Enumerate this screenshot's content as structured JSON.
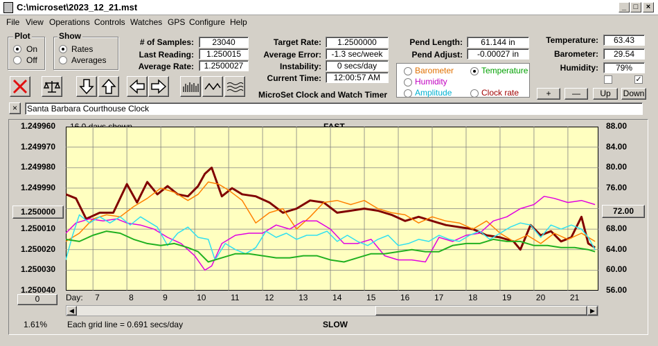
{
  "window": {
    "title": "C:\\microset\\2023_12_21.mst",
    "minimize": "_",
    "maximize": "□",
    "close": "×"
  },
  "menu": [
    "File",
    "View",
    "Operations",
    "Controls",
    "Watches",
    "GPS",
    "Configure",
    "Help"
  ],
  "plot_group": {
    "title": "Plot",
    "options": [
      "On",
      "Off"
    ],
    "selected": "On"
  },
  "show_group": {
    "title": "Show",
    "options": [
      "Rates",
      "Averages"
    ],
    "selected": "Rates"
  },
  "stats": {
    "samples_label": "# of Samples:",
    "samples": "23040",
    "last_label": "Last Reading:",
    "last": "1.250015",
    "avg_label": "Average Rate:",
    "avg": "1.2500027"
  },
  "rates": {
    "target_label": "Target Rate:",
    "target": "1.2500000",
    "error_label": "Average Error:",
    "error": "-1.3 sec/week",
    "instab_label": "Instability:",
    "instab": "0 secs/day",
    "time_label": "Current Time:",
    "time": "12:00:57 AM"
  },
  "app_name": "MicroSet Clock and Watch Timer",
  "pendulum": {
    "length_label": "Pend Length:",
    "length": "61.144 in",
    "adjust_label": "Pend Adjust:",
    "adjust": "-0.00027 in"
  },
  "sensor_select": {
    "options": [
      {
        "label": "Barometer",
        "color": "#e07000"
      },
      {
        "label": "Temperature",
        "color": "#00a000"
      },
      {
        "label": "Humidity",
        "color": "#c000c0"
      },
      {
        "label": "Clock rate",
        "color": "#a00000"
      },
      {
        "label": "Amplitude",
        "color": "#00c0e0"
      }
    ],
    "selected": "Temperature"
  },
  "env": {
    "temp_label": "Temperature:",
    "temp": "63.43",
    "baro_label": "Barometer:",
    "baro": "29.54",
    "hum_label": "Humidity:",
    "hum": "79%",
    "buttons": [
      "+",
      "—",
      "Up",
      "Down"
    ]
  },
  "clock_name": "Santa Barbara Courthouse Clock",
  "clock_close": "×",
  "chart_data": {
    "type": "line",
    "top_label": "FAST",
    "bottom_label": "SLOW",
    "days_shown": "16.0 days shown",
    "grid_note": "Each grid line = 0.691 secs/day",
    "percent": "1.61%",
    "zero_button": "0",
    "center_button_left": "1.250000",
    "center_button_right": "72.00",
    "x_axis_label": "Day:",
    "x_ticks": [
      "7",
      "8",
      "9",
      "10",
      "11",
      "12",
      "13",
      "14",
      "15",
      "16",
      "17",
      "18",
      "19",
      "20",
      "21"
    ],
    "x_range": [
      6.2,
      21.9
    ],
    "y_left_ticks": [
      "1.249960",
      "1.249970",
      "1.249980",
      "1.249990",
      "1.250000",
      "1.250010",
      "1.250020",
      "1.250030",
      "1.250040"
    ],
    "y_left_range": [
      1.24996,
      1.25004
    ],
    "y_right_ticks": [
      "88.00",
      "84.00",
      "80.00",
      "76.00",
      "72.00",
      "68.00",
      "64.00",
      "60.00",
      "56.00"
    ],
    "y_right_range": [
      88,
      56
    ],
    "series": [
      {
        "name": "Clock rate",
        "color": "#800000",
        "width": 3,
        "x": [
          6.2,
          6.5,
          6.8,
          7.2,
          7.6,
          8.0,
          8.3,
          8.6,
          8.9,
          9.2,
          9.5,
          9.8,
          10.1,
          10.3,
          10.5,
          10.8,
          11.1,
          11.4,
          11.8,
          12.2,
          12.6,
          13.0,
          13.4,
          13.8,
          14.2,
          14.6,
          15.0,
          15.4,
          15.8,
          16.2,
          16.6,
          17.0,
          17.4,
          17.8,
          18.2,
          18.6,
          19.0,
          19.4,
          19.6,
          19.9,
          20.2,
          20.5,
          20.8,
          21.1,
          21.4,
          21.6,
          21.8
        ],
        "y": [
          1.249993,
          1.249995,
          1.250005,
          1.250002,
          1.250002,
          1.249988,
          1.249997,
          1.249987,
          1.249993,
          1.249989,
          1.249993,
          1.249994,
          1.249989,
          1.249983,
          1.24998,
          1.249994,
          1.24999,
          1.249993,
          1.249994,
          1.249997,
          1.250002,
          1.25,
          1.249996,
          1.249997,
          1.250002,
          1.250001,
          1.25,
          1.250001,
          1.250003,
          1.250006,
          1.250004,
          1.250006,
          1.250008,
          1.250009,
          1.25001,
          1.250013,
          1.250014,
          1.250016,
          1.25002,
          1.250008,
          1.250013,
          1.250011,
          1.250016,
          1.250014,
          1.250004,
          1.250017,
          1.250019
        ]
      },
      {
        "name": "Barometer",
        "color": "#ff8000",
        "width": 1.5,
        "x": [
          6.2,
          6.6,
          7.0,
          7.4,
          7.8,
          8.2,
          8.6,
          9.0,
          9.4,
          9.8,
          10.1,
          10.4,
          10.7,
          11.0,
          11.4,
          11.8,
          12.2,
          12.6,
          13.0,
          13.4,
          13.8,
          14.2,
          14.6,
          15.0,
          15.4,
          15.8,
          16.2,
          16.6,
          17.0,
          17.4,
          17.8,
          18.2,
          18.6,
          19.0,
          19.4,
          19.8,
          20.2,
          20.6,
          21.0,
          21.4,
          21.8
        ],
        "y": [
          1.250016,
          1.250012,
          1.250005,
          1.250003,
          1.250004,
          1.249999,
          1.249995,
          1.24999,
          1.249992,
          1.249996,
          1.249993,
          1.249987,
          1.249988,
          1.249991,
          1.249996,
          1.250007,
          1.250002,
          1.25,
          1.25001,
          1.250004,
          1.249997,
          1.249996,
          1.249998,
          1.249996,
          1.25,
          1.250002,
          1.250003,
          1.250007,
          1.250004,
          1.250006,
          1.250007,
          1.25001,
          1.250006,
          1.250012,
          1.250016,
          1.250013,
          1.250017,
          1.250012,
          1.250015,
          1.250012,
          1.250016
        ]
      },
      {
        "name": "Humidity",
        "color": "#e000e0",
        "width": 1.5,
        "x": [
          6.2,
          6.5,
          6.9,
          7.3,
          7.7,
          8.0,
          8.4,
          8.8,
          9.2,
          9.6,
          10.0,
          10.3,
          10.5,
          10.8,
          11.2,
          11.6,
          12.0,
          12.4,
          12.8,
          13.2,
          13.6,
          14.0,
          14.4,
          14.8,
          15.2,
          15.6,
          16.0,
          16.4,
          16.8,
          17.2,
          17.6,
          18.0,
          18.4,
          18.8,
          19.2,
          19.6,
          20.0,
          20.3,
          20.6,
          21.0,
          21.4,
          21.8
        ],
        "y": [
          1.250012,
          1.250007,
          1.250005,
          1.250006,
          1.250005,
          1.250007,
          1.250008,
          1.25001,
          1.250014,
          1.250017,
          1.250023,
          1.25003,
          1.250028,
          1.250017,
          1.250013,
          1.250012,
          1.250012,
          1.250008,
          1.25001,
          1.250006,
          1.250006,
          1.25001,
          1.250017,
          1.250017,
          1.250015,
          1.250023,
          1.250025,
          1.250025,
          1.250026,
          1.250014,
          1.250016,
          1.250013,
          1.250012,
          1.250006,
          1.250004,
          1.25,
          1.249998,
          1.249994,
          1.249995,
          1.249997,
          1.249996,
          1.249998
        ]
      },
      {
        "name": "Amplitude",
        "color": "#30e0f0",
        "width": 1.5,
        "x": [
          6.2,
          6.4,
          6.6,
          6.9,
          7.2,
          7.5,
          7.8,
          8.1,
          8.4,
          8.6,
          8.9,
          9.2,
          9.5,
          9.8,
          10.1,
          10.4,
          10.6,
          10.9,
          11.2,
          11.5,
          11.8,
          12.1,
          12.4,
          12.7,
          13.0,
          13.3,
          13.6,
          13.9,
          14.2,
          14.5,
          14.8,
          15.1,
          15.4,
          15.7,
          16.0,
          16.3,
          16.6,
          16.9,
          17.2,
          17.5,
          17.8,
          18.1,
          18.4,
          18.7,
          19.0,
          19.3,
          19.6,
          19.9,
          20.2,
          20.5,
          20.8,
          21.1,
          21.4,
          21.6,
          21.8
        ],
        "y": [
          1.250025,
          1.250013,
          1.250003,
          1.250007,
          1.250004,
          1.250007,
          1.250004,
          1.250008,
          1.250004,
          1.250006,
          1.250009,
          1.250018,
          1.250012,
          1.250009,
          1.250014,
          1.250015,
          1.250025,
          1.250017,
          1.25002,
          1.250022,
          1.250019,
          1.250011,
          1.250014,
          1.250012,
          1.250015,
          1.250013,
          1.250013,
          1.250011,
          1.250016,
          1.250013,
          1.250016,
          1.250018,
          1.250015,
          1.250013,
          1.250018,
          1.250017,
          1.250015,
          1.250016,
          1.250013,
          1.250015,
          1.250016,
          1.250013,
          1.250011,
          1.250015,
          1.250012,
          1.250009,
          1.250007,
          1.250008,
          1.250014,
          1.250008,
          1.25001,
          1.250008,
          1.25001,
          1.250014,
          1.25002
        ]
      },
      {
        "name": "Temperature",
        "color": "#20b020",
        "width": 2,
        "x": [
          6.2,
          6.6,
          7.0,
          7.4,
          7.8,
          8.2,
          8.6,
          9.0,
          9.4,
          9.8,
          10.1,
          10.4,
          10.8,
          11.2,
          11.6,
          12.0,
          12.4,
          12.8,
          13.2,
          13.6,
          14.0,
          14.4,
          14.8,
          15.2,
          15.6,
          16.0,
          16.4,
          16.8,
          17.2,
          17.6,
          18.0,
          18.4,
          18.8,
          19.2,
          19.6,
          20.0,
          20.4,
          20.8,
          21.2,
          21.6,
          21.8
        ],
        "y": [
          1.250015,
          1.250016,
          1.250013,
          1.250011,
          1.250012,
          1.250015,
          1.250017,
          1.250018,
          1.250017,
          1.250019,
          1.250021,
          1.250026,
          1.250024,
          1.250022,
          1.250022,
          1.250023,
          1.250024,
          1.250024,
          1.250023,
          1.250023,
          1.250025,
          1.250026,
          1.250024,
          1.250022,
          1.250022,
          1.250021,
          1.25002,
          1.250021,
          1.250021,
          1.250018,
          1.250017,
          1.250017,
          1.250015,
          1.250016,
          1.250016,
          1.250018,
          1.250018,
          1.250019,
          1.250019,
          1.25002,
          1.250021
        ]
      }
    ]
  }
}
